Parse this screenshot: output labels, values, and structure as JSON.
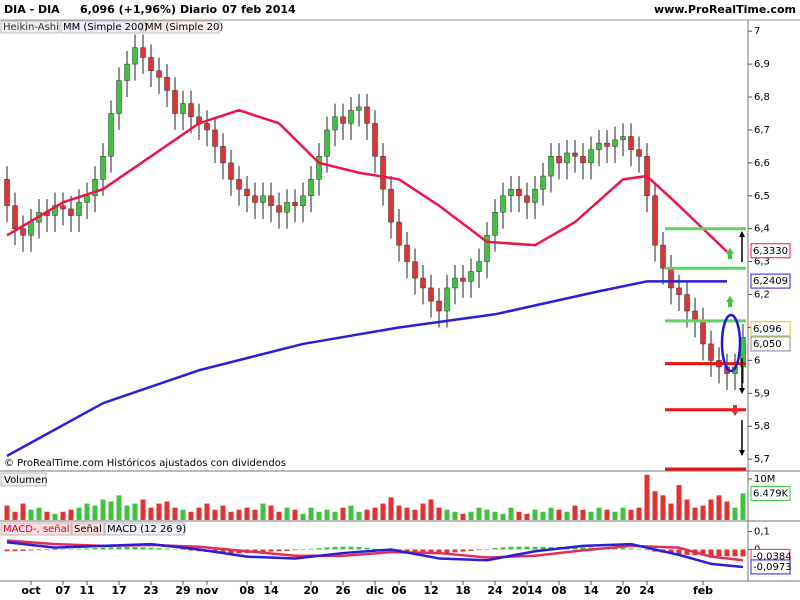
{
  "header": {
    "symbol": "DIA - DIA",
    "quote": "6,096 (+1,96%)",
    "period": "Diario",
    "date": "07 feb 2014",
    "site": "www.ProRealTime.com"
  },
  "footer": "© ProRealTime.com Históricos ajustados con dividendos",
  "chart_data": [
    {
      "type": "candlestick",
      "legend_label": "Heikin-Ashi",
      "categories": [
        null,
        null,
        null,
        "oct",
        null,
        null,
        null,
        "07",
        null,
        null,
        "11",
        null,
        null,
        null,
        "17",
        null,
        null,
        null,
        "23",
        null,
        null,
        null,
        "29",
        null,
        null,
        "nov",
        null,
        null,
        null,
        null,
        "08",
        null,
        null,
        "14",
        null,
        null,
        null,
        null,
        "20",
        null,
        null,
        null,
        "26",
        null,
        null,
        null,
        "dic",
        null,
        null,
        "06",
        null,
        null,
        null,
        "12",
        null,
        null,
        null,
        "18",
        null,
        null,
        null,
        "24",
        null,
        null,
        null,
        "2014",
        null,
        null,
        null,
        "08",
        null,
        null,
        null,
        "14",
        null,
        null,
        null,
        "20",
        null,
        null,
        "24",
        null,
        null,
        null,
        null,
        null,
        null,
        "feb",
        null,
        null,
        null,
        null,
        null
      ],
      "open": [
        6.55,
        6.47,
        6.4,
        6.38,
        6.42,
        6.45,
        6.44,
        6.47,
        6.46,
        6.44,
        6.48,
        6.5,
        6.55,
        6.62,
        6.75,
        6.85,
        6.9,
        6.95,
        6.92,
        6.88,
        6.86,
        6.82,
        6.75,
        6.78,
        6.74,
        6.72,
        6.7,
        6.65,
        6.6,
        6.55,
        6.52,
        6.5,
        6.48,
        6.5,
        6.47,
        6.45,
        6.48,
        6.47,
        6.5,
        6.55,
        6.62,
        6.7,
        6.74,
        6.72,
        6.76,
        6.77,
        6.72,
        6.62,
        6.52,
        6.42,
        6.35,
        6.3,
        6.25,
        6.22,
        6.18,
        6.15,
        6.22,
        6.25,
        6.24,
        6.27,
        6.3,
        6.38,
        6.45,
        6.5,
        6.52,
        6.5,
        6.48,
        6.52,
        6.56,
        6.62,
        6.6,
        6.63,
        6.62,
        6.6,
        6.64,
        6.66,
        6.65,
        6.67,
        6.68,
        6.64,
        6.62,
        6.5,
        6.35,
        6.28,
        6.22,
        6.2,
        6.15,
        6.12,
        6.05,
        6.0,
        5.98,
        5.96,
        5.98
      ],
      "high": [
        6.59,
        6.51,
        6.44,
        6.46,
        6.49,
        6.49,
        6.51,
        6.51,
        6.5,
        6.52,
        6.54,
        6.59,
        6.66,
        6.79,
        6.89,
        6.94,
        6.99,
        6.99,
        6.96,
        6.92,
        6.9,
        6.86,
        6.82,
        6.82,
        6.78,
        6.76,
        6.74,
        6.69,
        6.64,
        6.59,
        6.56,
        6.54,
        6.54,
        6.54,
        6.51,
        6.52,
        6.52,
        6.54,
        6.59,
        6.66,
        6.74,
        6.78,
        6.78,
        6.8,
        6.81,
        6.81,
        6.76,
        6.66,
        6.56,
        6.46,
        6.39,
        6.34,
        6.29,
        6.26,
        6.22,
        6.26,
        6.29,
        6.29,
        6.31,
        6.34,
        6.42,
        6.49,
        6.54,
        6.56,
        6.56,
        6.54,
        6.56,
        6.6,
        6.66,
        6.66,
        6.67,
        6.67,
        6.66,
        6.68,
        6.7,
        6.7,
        6.71,
        6.72,
        6.72,
        6.68,
        6.66,
        6.54,
        6.39,
        6.32,
        6.26,
        6.24,
        6.19,
        6.16,
        6.09,
        6.04,
        6.02,
        6.02,
        6.11
      ],
      "low": [
        6.42,
        6.35,
        6.33,
        6.33,
        6.37,
        6.39,
        6.39,
        6.41,
        6.39,
        6.39,
        6.43,
        6.45,
        6.5,
        6.57,
        6.7,
        6.8,
        6.85,
        6.87,
        6.83,
        6.81,
        6.77,
        6.7,
        6.7,
        6.69,
        6.67,
        6.65,
        6.6,
        6.55,
        6.5,
        6.47,
        6.45,
        6.43,
        6.43,
        6.42,
        6.4,
        6.4,
        6.42,
        6.42,
        6.45,
        6.5,
        6.57,
        6.65,
        6.67,
        6.67,
        6.71,
        6.67,
        6.57,
        6.47,
        6.37,
        6.3,
        6.25,
        6.2,
        6.17,
        6.13,
        6.1,
        6.1,
        6.17,
        6.19,
        6.19,
        6.22,
        6.25,
        6.33,
        6.4,
        6.45,
        6.45,
        6.43,
        6.43,
        6.47,
        6.51,
        6.55,
        6.55,
        6.57,
        6.55,
        6.55,
        6.59,
        6.6,
        6.6,
        6.62,
        6.59,
        6.57,
        6.45,
        6.3,
        6.23,
        6.17,
        6.15,
        6.1,
        6.07,
        6.0,
        5.95,
        5.93,
        5.91,
        5.91,
        5.93
      ],
      "close": [
        6.47,
        6.4,
        6.38,
        6.42,
        6.45,
        6.44,
        6.47,
        6.46,
        6.44,
        6.48,
        6.5,
        6.55,
        6.62,
        6.75,
        6.85,
        6.9,
        6.95,
        6.92,
        6.88,
        6.86,
        6.82,
        6.75,
        6.78,
        6.74,
        6.72,
        6.7,
        6.65,
        6.6,
        6.55,
        6.52,
        6.5,
        6.48,
        6.5,
        6.47,
        6.45,
        6.48,
        6.47,
        6.5,
        6.55,
        6.62,
        6.7,
        6.74,
        6.72,
        6.76,
        6.77,
        6.72,
        6.62,
        6.52,
        6.42,
        6.35,
        6.3,
        6.25,
        6.22,
        6.18,
        6.15,
        6.22,
        6.25,
        6.24,
        6.27,
        6.3,
        6.38,
        6.45,
        6.5,
        6.52,
        6.5,
        6.48,
        6.52,
        6.56,
        6.62,
        6.6,
        6.63,
        6.62,
        6.6,
        6.64,
        6.66,
        6.65,
        6.67,
        6.68,
        6.64,
        6.62,
        6.5,
        6.35,
        6.28,
        6.22,
        6.2,
        6.15,
        6.12,
        6.05,
        6.0,
        5.98,
        5.96,
        5.98,
        6.07
      ],
      "up_color": "#3cc43c",
      "down_color": "#e53030",
      "series": [
        {
          "name": "MM (Simple 200)",
          "color": "#2a1ed8",
          "x": [
            0,
            12,
            24,
            37,
            49,
            61,
            74,
            80,
            90
          ],
          "values": [
            5.71,
            5.87,
            5.97,
            6.05,
            6.1,
            6.14,
            6.21,
            6.24,
            6.24
          ]
        },
        {
          "name": "MM (Simple 20)",
          "color": "#f0134a",
          "x": [
            0,
            7,
            12,
            18,
            24,
            29,
            34,
            39,
            44,
            49,
            54,
            60,
            66,
            71,
            77,
            80,
            84,
            90
          ],
          "values": [
            6.38,
            6.48,
            6.52,
            6.62,
            6.72,
            6.76,
            6.72,
            6.6,
            6.57,
            6.55,
            6.47,
            6.36,
            6.35,
            6.42,
            6.55,
            6.56,
            6.47,
            6.33
          ]
        }
      ],
      "levels": {
        "values": [
          6.4,
          6.28,
          6.12,
          5.99,
          5.85,
          5.67
        ],
        "colors": [
          "#5fd45f",
          "#5fd45f",
          "#5fd45f",
          "#f01010",
          "#f01010",
          "#f01010"
        ]
      },
      "tags": [
        {
          "value": 6.333,
          "label": "6,3330",
          "color": "#f0134a"
        },
        {
          "value": 6.2409,
          "label": "6,2409",
          "color": "#2a1ed8"
        },
        {
          "value": 6.096,
          "label": "6,096",
          "color": "#e8c800"
        },
        {
          "value": 6.05,
          "label": "6,050",
          "color": "#888888"
        }
      ],
      "ylim": [
        5.667,
        7.034
      ],
      "yticks": [
        {
          "value": 5.7,
          "label": "5,7"
        },
        {
          "value": 5.8,
          "label": "5,8"
        },
        {
          "value": 5.9,
          "label": "5,9"
        },
        6,
        {
          "value": 6.1,
          "label": "6,1"
        },
        {
          "value": 6.2,
          "label": "6,2"
        },
        {
          "value": 6.3,
          "label": "6,3"
        },
        {
          "value": 6.4,
          "label": "6,4"
        },
        {
          "value": 6.5,
          "label": "6,5"
        },
        {
          "value": 6.6,
          "label": "6,6"
        },
        {
          "value": 6.7,
          "label": "6,7"
        },
        {
          "value": 6.8,
          "label": "6,8"
        },
        {
          "value": 6.9,
          "label": "6,9"
        },
        7
      ]
    },
    {
      "type": "bar",
      "title": "Volumen",
      "values": [
        3500000,
        2000000,
        4000000,
        2500000,
        3000000,
        2000000,
        1500000,
        2000000,
        2500000,
        3000000,
        4000000,
        3500000,
        5000000,
        4500000,
        6000000,
        3500000,
        4000000,
        5000000,
        3000000,
        4000000,
        4500000,
        3000000,
        2500000,
        2000000,
        3000000,
        4000000,
        2500000,
        3500000,
        2000000,
        2500000,
        3000000,
        2500000,
        4000000,
        3500000,
        2000000,
        3000000,
        2500000,
        1500000,
        3000000,
        2000000,
        2500000,
        2000000,
        3000000,
        3500000,
        2000000,
        2500000,
        3000000,
        4000000,
        5500000,
        3500000,
        3000000,
        2500000,
        4000000,
        5000000,
        3000000,
        2500000,
        2000000,
        1500000,
        2000000,
        3000000,
        2500000,
        2000000,
        1500000,
        3000000,
        2000000,
        1500000,
        2500000,
        2000000,
        3000000,
        2500000,
        2000000,
        3500000,
        2500000,
        2000000,
        3000000,
        2500000,
        2000000,
        3000000,
        2500000,
        3000000,
        11000000,
        7000000,
        6000000,
        4000000,
        8500000,
        5000000,
        3000000,
        3500000,
        5000000,
        6000000,
        4500000,
        3000000,
        6479000
      ],
      "ylim": [
        0,
        11200000
      ],
      "yticks": [
        {
          "value": 10000000,
          "label": "10M"
        }
      ],
      "tags": [
        {
          "value": 6479000,
          "label": "6.479K",
          "color": "#3cc43c"
        }
      ]
    },
    {
      "type": "macd",
      "histogram": {
        "name": "MACD-, señal",
        "values": [
          -0.01,
          -0.01,
          -0.008,
          -0.005,
          -0.004,
          -0.003,
          -0.002,
          0.0,
          0.002,
          0.004,
          0.006,
          0.008,
          0.01,
          0.012,
          0.014,
          0.015,
          0.014,
          0.012,
          0.01,
          0.008,
          0.005,
          0.002,
          -0.002,
          -0.006,
          -0.01,
          -0.014,
          -0.018,
          -0.02,
          -0.022,
          -0.022,
          -0.02,
          -0.018,
          -0.015,
          -0.012,
          -0.01,
          -0.008,
          -0.004,
          0.0,
          0.004,
          0.008,
          0.012,
          0.015,
          0.016,
          0.016,
          0.014,
          0.01,
          0.004,
          -0.004,
          -0.01,
          -0.016,
          -0.02,
          -0.024,
          -0.026,
          -0.026,
          -0.024,
          -0.02,
          -0.016,
          -0.012,
          -0.008,
          -0.004,
          0.002,
          0.008,
          0.012,
          0.015,
          0.016,
          0.016,
          0.015,
          0.015,
          0.014,
          0.014,
          0.013,
          0.012,
          0.012,
          0.011,
          0.01,
          0.01,
          0.009,
          0.008,
          0.006,
          0.004,
          -0.004,
          -0.012,
          -0.018,
          -0.024,
          -0.028,
          -0.03,
          -0.032,
          -0.034,
          -0.036,
          -0.037,
          -0.038,
          -0.038,
          -0.0384
        ]
      },
      "series": [
        {
          "name": "Señal",
          "color": "#e0305a",
          "x": [
            0,
            6,
            12,
            18,
            24,
            30,
            36,
            42,
            48,
            54,
            60,
            66,
            72,
            78,
            84,
            88,
            92
          ],
          "values": [
            0.05,
            0.03,
            0.02,
            0.025,
            0.015,
            -0.01,
            -0.035,
            -0.035,
            -0.015,
            -0.02,
            -0.045,
            -0.035,
            -0.005,
            0.02,
            0.01,
            -0.04,
            -0.06
          ]
        },
        {
          "name": "MACD (12 26 9)",
          "color": "#2a1ed8",
          "x": [
            0,
            6,
            12,
            18,
            24,
            30,
            36,
            42,
            48,
            54,
            60,
            66,
            72,
            78,
            84,
            88,
            92
          ],
          "values": [
            0.04,
            0.01,
            0.02,
            0.03,
            0.0,
            -0.04,
            -0.05,
            -0.02,
            0.0,
            -0.05,
            -0.06,
            -0.01,
            0.02,
            0.03,
            -0.03,
            -0.08,
            -0.0973
          ]
        }
      ],
      "pos_color": "#3cc43c",
      "neg_color": "#e53030",
      "ylim": [
        -0.17,
        0.153
      ],
      "yticks": [
        {
          "value": 0.1,
          "label": "0,1"
        },
        0
      ],
      "tags": [
        {
          "value": -0.0384,
          "label": "-0,0384",
          "color": "#e0305a"
        },
        {
          "value": -0.0973,
          "label": "-0,0973",
          "color": "#2a1ed8"
        }
      ]
    }
  ]
}
